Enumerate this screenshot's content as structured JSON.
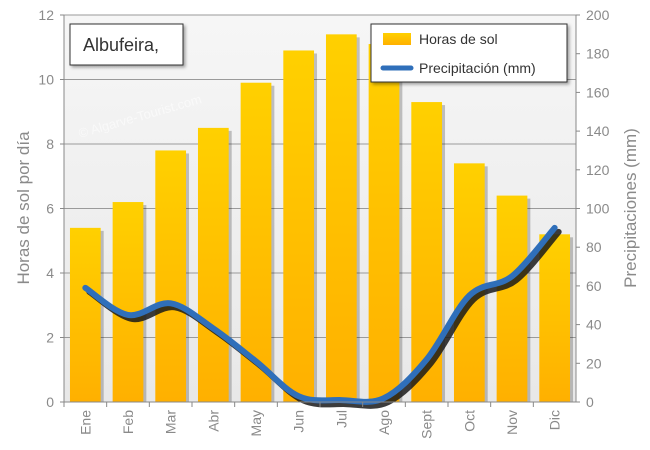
{
  "colors": {
    "bar_top": "#ffd000",
    "bar_bottom": "#ffb200",
    "line": "#2f6fba",
    "grid": "#9a9a9a",
    "text": "#8a8a8a"
  },
  "watermark": "© Algarve-Tourist.com",
  "chart_data": {
    "type": "bar",
    "title": "Albufeira,",
    "categories": [
      "Ene",
      "Feb",
      "Mar",
      "Abr",
      "May",
      "Jun",
      "Jul",
      "Ago",
      "Sept",
      "Oct",
      "Nov",
      "Dic"
    ],
    "series": [
      {
        "name": "Horas de sol",
        "type": "bar",
        "axis": "left",
        "values": [
          5.4,
          6.2,
          7.8,
          8.5,
          9.9,
          10.9,
          11.4,
          11.1,
          9.3,
          7.4,
          6.4,
          5.2
        ]
      },
      {
        "name": "Precipitación (mm)",
        "type": "line",
        "axis": "right",
        "values": [
          59,
          45,
          51,
          38,
          21,
          3,
          1,
          2,
          22,
          55,
          65,
          90
        ]
      }
    ],
    "ylabel_left": "Horas de sol por día",
    "ylabel_right": "Precipitaciones (mm)",
    "ylim_left": [
      0,
      12
    ],
    "ylim_right": [
      0,
      200
    ],
    "yticks_left": [
      "0",
      "2",
      "4",
      "6",
      "8",
      "10",
      "12"
    ],
    "yticks_right": [
      "0",
      "20",
      "40",
      "60",
      "80",
      "100",
      "120",
      "140",
      "160",
      "180",
      "200"
    ],
    "grid": true,
    "legend_position": "top-right"
  }
}
